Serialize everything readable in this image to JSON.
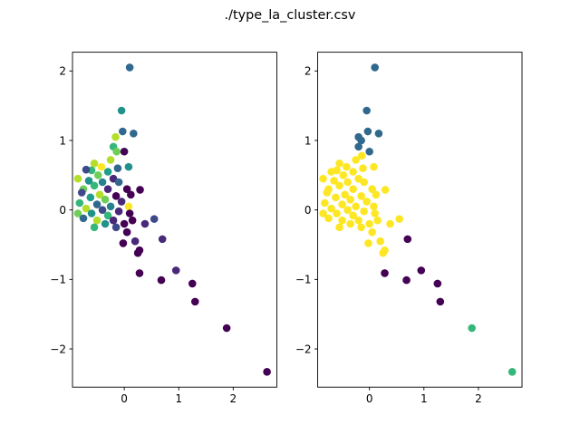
{
  "figure": {
    "suptitle": "./type_la_cluster.csv"
  },
  "chart_data": [
    {
      "type": "scatter",
      "title": "",
      "xlabel": "",
      "ylabel": "",
      "xlim": [
        -0.95,
        2.8
      ],
      "ylim": [
        -2.55,
        2.27
      ],
      "xticks": [
        0,
        1,
        2
      ],
      "yticks": [
        -2,
        -1,
        0,
        1,
        2
      ],
      "grid": false,
      "points": [
        {
          "x": 0.1,
          "y": 2.05,
          "color": "#31688e"
        },
        {
          "x": -0.05,
          "y": 1.43,
          "color": "#21918c"
        },
        {
          "x": -0.03,
          "y": 1.13,
          "color": "#31688e"
        },
        {
          "x": 0.17,
          "y": 1.1,
          "color": "#31688e"
        },
        {
          "x": -0.16,
          "y": 1.05,
          "color": "#b5de2b"
        },
        {
          "x": -0.2,
          "y": 0.91,
          "color": "#35b779"
        },
        {
          "x": -0.14,
          "y": 0.84,
          "color": "#6ece58"
        },
        {
          "x": 0.0,
          "y": 0.84,
          "color": "#440154"
        },
        {
          "x": -0.25,
          "y": 0.72,
          "color": "#b5de2b"
        },
        {
          "x": -0.55,
          "y": 0.67,
          "color": "#b5de2b"
        },
        {
          "x": -0.42,
          "y": 0.62,
          "color": "#fde725"
        },
        {
          "x": -0.6,
          "y": 0.57,
          "color": "#35b779"
        },
        {
          "x": 0.08,
          "y": 0.62,
          "color": "#21918c"
        },
        {
          "x": -0.12,
          "y": 0.6,
          "color": "#31688e"
        },
        {
          "x": -0.7,
          "y": 0.58,
          "color": "#3e4989"
        },
        {
          "x": -0.3,
          "y": 0.55,
          "color": "#1f9e89"
        },
        {
          "x": -0.48,
          "y": 0.5,
          "color": "#6ece58"
        },
        {
          "x": -0.85,
          "y": 0.45,
          "color": "#b5de2b"
        },
        {
          "x": -0.2,
          "y": 0.45,
          "color": "#482878"
        },
        {
          "x": -0.65,
          "y": 0.42,
          "color": "#21918c"
        },
        {
          "x": -0.4,
          "y": 0.4,
          "color": "#26828e"
        },
        {
          "x": -0.1,
          "y": 0.4,
          "color": "#31688e"
        },
        {
          "x": -0.55,
          "y": 0.35,
          "color": "#35b779"
        },
        {
          "x": 0.05,
          "y": 0.3,
          "color": "#440154"
        },
        {
          "x": 0.29,
          "y": 0.29,
          "color": "#440154"
        },
        {
          "x": -0.75,
          "y": 0.3,
          "color": "#6ece58"
        },
        {
          "x": -0.3,
          "y": 0.3,
          "color": "#482878"
        },
        {
          "x": -0.78,
          "y": 0.25,
          "color": "#3e4989"
        },
        {
          "x": -0.45,
          "y": 0.22,
          "color": "#b5de2b"
        },
        {
          "x": -0.15,
          "y": 0.2,
          "color": "#440154"
        },
        {
          "x": 0.12,
          "y": 0.22,
          "color": "#440154"
        },
        {
          "x": -0.62,
          "y": 0.18,
          "color": "#1f9e89"
        },
        {
          "x": -0.35,
          "y": 0.15,
          "color": "#6ece58"
        },
        {
          "x": -0.05,
          "y": 0.12,
          "color": "#482878"
        },
        {
          "x": -0.82,
          "y": 0.1,
          "color": "#35b779"
        },
        {
          "x": -0.5,
          "y": 0.08,
          "color": "#31688e"
        },
        {
          "x": -0.25,
          "y": 0.05,
          "color": "#26828e"
        },
        {
          "x": 0.08,
          "y": 0.05,
          "color": "#fde725"
        },
        {
          "x": -0.7,
          "y": 0.02,
          "color": "#b5de2b"
        },
        {
          "x": -0.4,
          "y": 0.0,
          "color": "#3e4989"
        },
        {
          "x": -0.1,
          "y": -0.02,
          "color": "#482878"
        },
        {
          "x": -0.85,
          "y": -0.05,
          "color": "#6ece58"
        },
        {
          "x": -0.6,
          "y": -0.05,
          "color": "#21918c"
        },
        {
          "x": -0.3,
          "y": -0.08,
          "color": "#35b779"
        },
        {
          "x": 0.1,
          "y": -0.05,
          "color": "#440154"
        },
        {
          "x": -0.75,
          "y": -0.12,
          "color": "#31688e"
        },
        {
          "x": -0.5,
          "y": -0.15,
          "color": "#b5de2b"
        },
        {
          "x": -0.2,
          "y": -0.15,
          "color": "#482878"
        },
        {
          "x": -0.35,
          "y": -0.2,
          "color": "#21918c"
        },
        {
          "x": 0.0,
          "y": -0.2,
          "color": "#440154"
        },
        {
          "x": -0.55,
          "y": -0.25,
          "color": "#35b779"
        },
        {
          "x": -0.15,
          "y": -0.25,
          "color": "#3e4989"
        },
        {
          "x": 0.15,
          "y": -0.15,
          "color": "#440154"
        },
        {
          "x": 0.55,
          "y": -0.13,
          "color": "#3e4989"
        },
        {
          "x": 0.38,
          "y": -0.2,
          "color": "#482878"
        },
        {
          "x": 0.05,
          "y": -0.32,
          "color": "#440154"
        },
        {
          "x": -0.02,
          "y": -0.48,
          "color": "#440154"
        },
        {
          "x": 0.2,
          "y": -0.45,
          "color": "#482878"
        },
        {
          "x": 0.7,
          "y": -0.42,
          "color": "#482878"
        },
        {
          "x": 0.28,
          "y": -0.58,
          "color": "#440154"
        },
        {
          "x": 0.25,
          "y": -0.62,
          "color": "#440154"
        },
        {
          "x": 0.95,
          "y": -0.87,
          "color": "#482878"
        },
        {
          "x": 0.28,
          "y": -0.91,
          "color": "#440154"
        },
        {
          "x": 0.68,
          "y": -1.01,
          "color": "#440154"
        },
        {
          "x": 1.25,
          "y": -1.06,
          "color": "#440154"
        },
        {
          "x": 1.3,
          "y": -1.32,
          "color": "#440154"
        },
        {
          "x": 1.88,
          "y": -1.7,
          "color": "#440154"
        },
        {
          "x": 2.62,
          "y": -2.33,
          "color": "#440154"
        }
      ]
    },
    {
      "type": "scatter",
      "title": "",
      "xlabel": "",
      "ylabel": "",
      "xlim": [
        -0.95,
        2.8
      ],
      "ylim": [
        -2.55,
        2.27
      ],
      "xticks": [
        0,
        1,
        2
      ],
      "yticks": [
        -2,
        -1,
        0,
        1,
        2
      ],
      "grid": false,
      "points": [
        {
          "x": 0.1,
          "y": 2.05,
          "color": "#31688e"
        },
        {
          "x": -0.05,
          "y": 1.43,
          "color": "#31688e"
        },
        {
          "x": -0.03,
          "y": 1.13,
          "color": "#31688e"
        },
        {
          "x": 0.17,
          "y": 1.1,
          "color": "#31688e"
        },
        {
          "x": -0.2,
          "y": 1.05,
          "color": "#31688e"
        },
        {
          "x": -0.15,
          "y": 1.0,
          "color": "#31688e"
        },
        {
          "x": -0.2,
          "y": 0.91,
          "color": "#31688e"
        },
        {
          "x": 0.0,
          "y": 0.84,
          "color": "#31688e"
        },
        {
          "x": -0.14,
          "y": 0.78,
          "color": "#fde725"
        },
        {
          "x": -0.25,
          "y": 0.72,
          "color": "#fde725"
        },
        {
          "x": -0.55,
          "y": 0.67,
          "color": "#fde725"
        },
        {
          "x": -0.42,
          "y": 0.62,
          "color": "#fde725"
        },
        {
          "x": 0.08,
          "y": 0.62,
          "color": "#fde725"
        },
        {
          "x": -0.12,
          "y": 0.6,
          "color": "#fde725"
        },
        {
          "x": -0.6,
          "y": 0.57,
          "color": "#fde725"
        },
        {
          "x": -0.7,
          "y": 0.55,
          "color": "#fde725"
        },
        {
          "x": -0.3,
          "y": 0.55,
          "color": "#fde725"
        },
        {
          "x": -0.48,
          "y": 0.5,
          "color": "#fde725"
        },
        {
          "x": -0.85,
          "y": 0.45,
          "color": "#fde725"
        },
        {
          "x": -0.2,
          "y": 0.45,
          "color": "#fde725"
        },
        {
          "x": -0.65,
          "y": 0.42,
          "color": "#fde725"
        },
        {
          "x": -0.4,
          "y": 0.4,
          "color": "#fde725"
        },
        {
          "x": -0.1,
          "y": 0.4,
          "color": "#fde725"
        },
        {
          "x": -0.55,
          "y": 0.35,
          "color": "#fde725"
        },
        {
          "x": 0.05,
          "y": 0.3,
          "color": "#fde725"
        },
        {
          "x": 0.29,
          "y": 0.29,
          "color": "#fde725"
        },
        {
          "x": -0.75,
          "y": 0.3,
          "color": "#fde725"
        },
        {
          "x": -0.3,
          "y": 0.3,
          "color": "#fde725"
        },
        {
          "x": -0.78,
          "y": 0.25,
          "color": "#fde725"
        },
        {
          "x": -0.45,
          "y": 0.22,
          "color": "#fde725"
        },
        {
          "x": -0.15,
          "y": 0.2,
          "color": "#fde725"
        },
        {
          "x": 0.12,
          "y": 0.22,
          "color": "#fde725"
        },
        {
          "x": -0.62,
          "y": 0.18,
          "color": "#fde725"
        },
        {
          "x": -0.35,
          "y": 0.15,
          "color": "#fde725"
        },
        {
          "x": -0.05,
          "y": 0.12,
          "color": "#fde725"
        },
        {
          "x": -0.82,
          "y": 0.1,
          "color": "#fde725"
        },
        {
          "x": -0.5,
          "y": 0.08,
          "color": "#fde725"
        },
        {
          "x": -0.25,
          "y": 0.05,
          "color": "#fde725"
        },
        {
          "x": 0.08,
          "y": 0.05,
          "color": "#fde725"
        },
        {
          "x": -0.7,
          "y": 0.02,
          "color": "#fde725"
        },
        {
          "x": -0.4,
          "y": 0.0,
          "color": "#fde725"
        },
        {
          "x": -0.1,
          "y": -0.02,
          "color": "#fde725"
        },
        {
          "x": -0.85,
          "y": -0.05,
          "color": "#fde725"
        },
        {
          "x": -0.6,
          "y": -0.05,
          "color": "#fde725"
        },
        {
          "x": -0.3,
          "y": -0.08,
          "color": "#fde725"
        },
        {
          "x": 0.1,
          "y": -0.05,
          "color": "#fde725"
        },
        {
          "x": -0.75,
          "y": -0.12,
          "color": "#fde725"
        },
        {
          "x": -0.5,
          "y": -0.15,
          "color": "#fde725"
        },
        {
          "x": -0.2,
          "y": -0.15,
          "color": "#fde725"
        },
        {
          "x": -0.35,
          "y": -0.2,
          "color": "#fde725"
        },
        {
          "x": 0.0,
          "y": -0.2,
          "color": "#fde725"
        },
        {
          "x": -0.55,
          "y": -0.25,
          "color": "#fde725"
        },
        {
          "x": -0.15,
          "y": -0.25,
          "color": "#fde725"
        },
        {
          "x": 0.15,
          "y": -0.15,
          "color": "#fde725"
        },
        {
          "x": 0.55,
          "y": -0.13,
          "color": "#fde725"
        },
        {
          "x": 0.38,
          "y": -0.2,
          "color": "#fde725"
        },
        {
          "x": 0.05,
          "y": -0.32,
          "color": "#fde725"
        },
        {
          "x": -0.02,
          "y": -0.48,
          "color": "#fde725"
        },
        {
          "x": 0.2,
          "y": -0.45,
          "color": "#fde725"
        },
        {
          "x": 0.28,
          "y": -0.58,
          "color": "#fde725"
        },
        {
          "x": 0.25,
          "y": -0.62,
          "color": "#fde725"
        },
        {
          "x": 0.7,
          "y": -0.42,
          "color": "#440154"
        },
        {
          "x": 0.95,
          "y": -0.87,
          "color": "#440154"
        },
        {
          "x": 0.28,
          "y": -0.91,
          "color": "#440154"
        },
        {
          "x": 0.68,
          "y": -1.01,
          "color": "#440154"
        },
        {
          "x": 1.25,
          "y": -1.06,
          "color": "#440154"
        },
        {
          "x": 1.3,
          "y": -1.32,
          "color": "#440154"
        },
        {
          "x": 1.88,
          "y": -1.7,
          "color": "#35b779"
        },
        {
          "x": 2.62,
          "y": -2.33,
          "color": "#35b779"
        }
      ]
    }
  ]
}
